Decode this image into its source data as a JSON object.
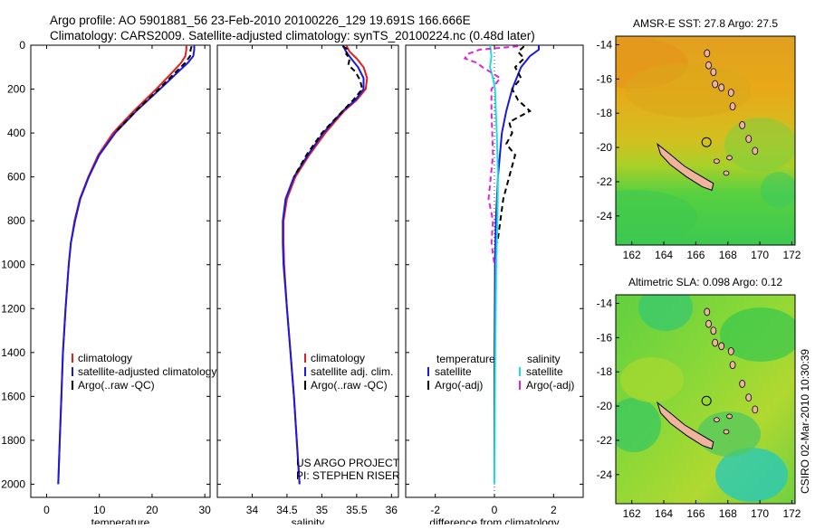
{
  "header": {
    "line1": "Argo profile: AO 5901881_56 23-Feb-2010 20100226_129 19.691S 166.666E",
    "line2": "Climatology: CARS2009. Satellite-adjusted climatology: synTS_20100224.nc (0.48d later)"
  },
  "side_label": "CSIRO 02-Mar-2010 10:30:39",
  "colors": {
    "climatology": "#e02020",
    "satellite": "#1a1adf",
    "argo": "#000000",
    "sal_satellite": "#22dddd",
    "sal_argo": "#dd22dd",
    "land": "#f0b49c"
  },
  "chart_data": [
    {
      "type": "line",
      "id": "temperature",
      "xlabel": "temperature",
      "ylabel": "",
      "xlim": [
        -3,
        31
      ],
      "ylim": [
        2060,
        0
      ],
      "xticks": [
        0,
        10,
        20,
        30
      ],
      "yticks": [
        0,
        200,
        400,
        600,
        800,
        1000,
        1200,
        1400,
        1600,
        1800,
        2000
      ],
      "legend": [
        "climatology",
        "satellite-adjusted climatology",
        "Argo(..raw -QC)"
      ],
      "series": [
        {
          "name": "climatology",
          "color_key": "climatology",
          "dash": "",
          "depth": [
            0,
            20,
            50,
            80,
            120,
            200,
            300,
            400,
            500,
            600,
            700,
            800,
            900,
            1000,
            1200,
            1400,
            1600,
            1800,
            2000
          ],
          "values": [
            26.5,
            26.5,
            26.3,
            25.5,
            24.0,
            20.8,
            16.5,
            12.6,
            9.8,
            7.9,
            6.3,
            5.3,
            4.6,
            4.2,
            3.6,
            3.1,
            2.8,
            2.5,
            2.2
          ]
        },
        {
          "name": "satellite-adjusted climatology",
          "color_key": "satellite",
          "dash": "",
          "depth": [
            0,
            20,
            50,
            80,
            120,
            200,
            300,
            400,
            500,
            600,
            700,
            800,
            900,
            1000,
            1200,
            1400,
            1600,
            1800,
            2000
          ],
          "values": [
            28.0,
            28.0,
            27.8,
            26.8,
            25.0,
            21.5,
            17.0,
            13.0,
            10.0,
            8.0,
            6.4,
            5.4,
            4.6,
            4.2,
            3.6,
            3.1,
            2.8,
            2.5,
            2.2
          ]
        },
        {
          "name": "Argo(..raw -QC)",
          "color_key": "argo",
          "dash": "6,4",
          "depth": [
            5,
            20,
            50,
            80,
            120,
            200,
            300,
            400
          ],
          "values": [
            27.5,
            27.3,
            27.2,
            26.3,
            24.6,
            21.3,
            16.9,
            12.9
          ]
        }
      ]
    },
    {
      "type": "line",
      "id": "salinity",
      "xlabel": "salinity",
      "ylabel": "",
      "xlim": [
        33.5,
        36.1
      ],
      "ylim": [
        2060,
        0
      ],
      "xticks": [
        34,
        34.5,
        35,
        35.5,
        36
      ],
      "xtick_labels": [
        "34",
        "34.5",
        "35",
        "35.5",
        "36"
      ],
      "yticks": [
        0,
        200,
        400,
        600,
        800,
        1000,
        1200,
        1400,
        1600,
        1800,
        2000
      ],
      "legend": [
        "climatology",
        "satellite adj. clim.",
        "Argo(..raw -QC)"
      ],
      "annotation": [
        "US ARGO PROJECT",
        "PI: STEPHEN RISER"
      ],
      "series": [
        {
          "name": "climatology",
          "color_key": "climatology",
          "dash": "",
          "depth": [
            0,
            30,
            60,
            100,
            150,
            200,
            250,
            300,
            400,
            500,
            600,
            700,
            800,
            900,
            1000,
            1200,
            1400,
            1600,
            1800,
            2000
          ],
          "values": [
            35.35,
            35.4,
            35.5,
            35.6,
            35.65,
            35.63,
            35.5,
            35.32,
            35.05,
            34.82,
            34.62,
            34.5,
            34.45,
            34.45,
            34.46,
            34.5,
            34.55,
            34.6,
            34.64,
            34.68
          ]
        },
        {
          "name": "satellite adj. clim.",
          "color_key": "satellite",
          "dash": "",
          "depth": [
            0,
            30,
            60,
            100,
            150,
            200,
            250,
            300,
            400,
            500,
            600,
            700,
            800,
            900,
            1000,
            1200,
            1400,
            1600,
            1800,
            2000
          ],
          "values": [
            35.3,
            35.35,
            35.42,
            35.52,
            35.6,
            35.6,
            35.48,
            35.3,
            35.02,
            34.8,
            34.6,
            34.48,
            34.44,
            34.44,
            34.45,
            34.5,
            34.55,
            34.6,
            34.64,
            34.68
          ]
        },
        {
          "name": "Argo(..raw -QC)",
          "color_key": "argo",
          "dash": "6,4",
          "depth": [
            5,
            20,
            40,
            60,
            90,
            120,
            160,
            200,
            250,
            300,
            400,
            500,
            600
          ],
          "values": [
            35.3,
            35.38,
            35.35,
            35.4,
            35.38,
            35.48,
            35.55,
            35.58,
            35.45,
            35.3,
            35.0,
            34.78,
            34.6
          ]
        }
      ]
    },
    {
      "type": "line",
      "id": "difference",
      "xlabel": "difference from climatology",
      "ylabel": "",
      "xlim": [
        -3,
        3
      ],
      "ylim": [
        2060,
        0
      ],
      "xticks": [
        -2,
        0,
        2
      ],
      "yticks": [
        0,
        200,
        400,
        600,
        800,
        1000,
        1200,
        1400,
        1600,
        1800,
        2000
      ],
      "legend_headers": [
        "temperature",
        "salinity"
      ],
      "legend": [
        "satellite",
        "Argo(-adj)",
        "satellite",
        "Argo(-adj)"
      ],
      "series": [
        {
          "name": "temperature satellite",
          "color_key": "satellite",
          "dash": "",
          "depth": [
            0,
            20,
            50,
            100,
            200,
            300,
            400,
            600,
            800,
            1000,
            1500,
            2000
          ],
          "values": [
            1.5,
            1.5,
            1.2,
            0.9,
            0.6,
            0.4,
            0.25,
            0.12,
            0.05,
            0.02,
            0.0,
            0.0
          ]
        },
        {
          "name": "temperature Argo(-adj)",
          "color_key": "argo",
          "dash": "6,4",
          "depth": [
            5,
            30,
            60,
            100,
            150,
            200,
            250,
            300,
            350,
            400,
            450,
            500,
            600,
            700,
            800,
            900
          ],
          "values": [
            1.0,
            0.8,
            1.0,
            0.7,
            0.9,
            0.6,
            0.8,
            1.2,
            0.5,
            0.6,
            0.4,
            0.7,
            0.5,
            0.3,
            0.2,
            0.1
          ]
        },
        {
          "name": "salinity satellite",
          "color_key": "sal_satellite",
          "dash": "",
          "depth": [
            0,
            50,
            100,
            150,
            200,
            300,
            400,
            500,
            600,
            800,
            1000,
            1500,
            2000
          ],
          "values": [
            -0.15,
            -0.1,
            -0.15,
            -0.05,
            0.02,
            0.05,
            0.08,
            0.1,
            0.12,
            0.1,
            0.06,
            0.02,
            0.0
          ]
        },
        {
          "name": "salinity Argo(-adj)",
          "color_key": "sal_argo",
          "dash": "6,4",
          "depth": [
            5,
            20,
            40,
            60,
            80,
            100,
            150,
            200,
            300,
            500,
            700,
            800,
            900,
            1000
          ],
          "values": [
            0.8,
            -0.5,
            -0.9,
            -1.0,
            -0.6,
            -0.4,
            0.2,
            -0.1,
            -0.1,
            -0.05,
            -0.2,
            -0.05,
            -0.1,
            0.0
          ]
        }
      ]
    },
    {
      "type": "heatmap",
      "id": "sst_map",
      "title": "AMSR-E SST: 27.8 Argo: 27.5",
      "xlim": [
        161,
        172.2
      ],
      "ylim": [
        -25.7,
        -13.5
      ],
      "xticks": [
        162,
        164,
        166,
        168,
        170,
        172
      ],
      "yticks": [
        -14,
        -16,
        -18,
        -20,
        -22,
        -24
      ],
      "float_position": {
        "lon": 166.666,
        "lat": -19.691
      }
    },
    {
      "type": "heatmap",
      "id": "sla_map",
      "title": "Altimetric SLA: 0.098 Argo: 0.12",
      "xlim": [
        161,
        172.2
      ],
      "ylim": [
        -25.7,
        -13.5
      ],
      "xticks": [
        162,
        164,
        166,
        168,
        170,
        172
      ],
      "yticks": [
        -14,
        -16,
        -18,
        -20,
        -22,
        -24
      ],
      "float_position": {
        "lon": 166.666,
        "lat": -19.691
      }
    }
  ]
}
